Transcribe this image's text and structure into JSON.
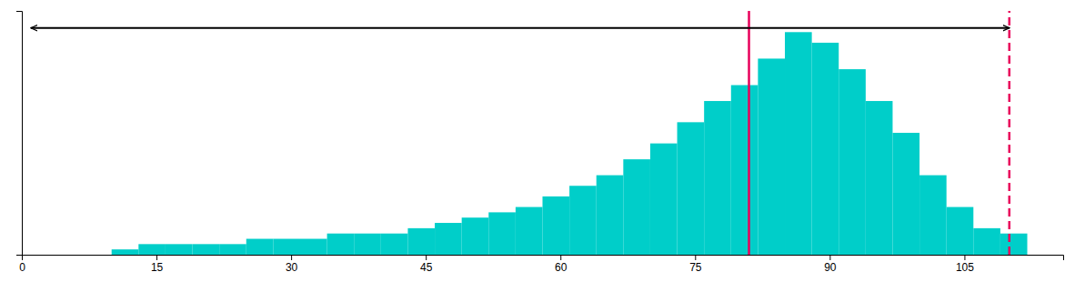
{
  "chart_data": {
    "type": "histogram",
    "bins": [
      10,
      13,
      16,
      19,
      22,
      25,
      28,
      31,
      34,
      37,
      40,
      43,
      46,
      49,
      52,
      55,
      58,
      61,
      64,
      67,
      70,
      73,
      76,
      79,
      82,
      85,
      88,
      91,
      94,
      97,
      100,
      103,
      106,
      109,
      112
    ],
    "values": [
      1,
      2,
      2,
      2,
      2,
      3,
      3,
      3,
      4,
      4,
      4,
      5,
      6,
      7,
      8,
      9,
      11,
      13,
      15,
      18,
      21,
      25,
      29,
      32,
      37,
      42,
      40,
      35,
      29,
      23,
      15,
      9,
      5,
      4
    ],
    "color": "#00CEC9",
    "vlines": [
      {
        "x": 81,
        "color": "#e8005a",
        "line_style": "solid"
      },
      {
        "x": 110,
        "color": "#e8005a",
        "line_style": "dashed"
      }
    ],
    "arrows": [
      {
        "x_start": 81,
        "x_end": 1,
        "y": 42.78,
        "color": "black"
      },
      {
        "x_start": 81,
        "x_end": 110,
        "y": 42.78,
        "color": "black"
      }
    ],
    "xlim": [
      0,
      116
    ],
    "ylim": [
      0,
      46
    ],
    "xticks": [
      0,
      15,
      30,
      45,
      60,
      75,
      90,
      105
    ],
    "grid": false,
    "tick_labels": "x"
  }
}
